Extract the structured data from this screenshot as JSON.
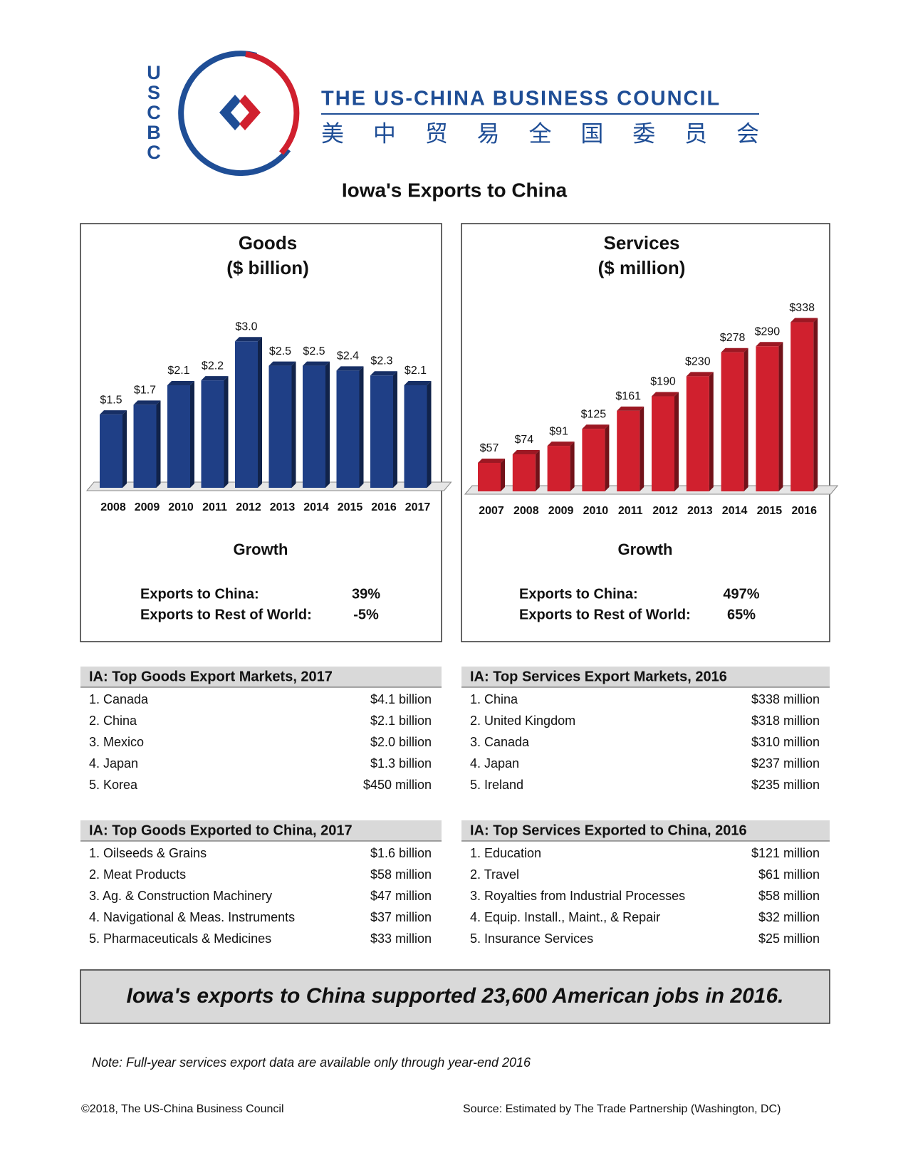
{
  "header": {
    "logo_letters": [
      "U",
      "S",
      "C",
      "B",
      "C"
    ],
    "org_name": "THE US-CHINA BUSINESS COUNCIL",
    "org_name_chinese": "美 中 贸 易 全 国 委 员 会"
  },
  "title": "Iowa's Exports to China",
  "chart_data": [
    {
      "type": "bar",
      "title": "Goods",
      "subtitle": "($ billion)",
      "categories": [
        "2008",
        "2009",
        "2010",
        "2011",
        "2012",
        "2013",
        "2014",
        "2015",
        "2016",
        "2017"
      ],
      "values": [
        1.5,
        1.7,
        2.1,
        2.2,
        3.0,
        2.5,
        2.5,
        2.4,
        2.3,
        2.1
      ],
      "value_labels": [
        "$1.5",
        "$1.7",
        "$2.1",
        "$2.2",
        "$3.0",
        "$2.5",
        "$2.5",
        "$2.4",
        "$2.3",
        "$2.1"
      ],
      "color": "#1f3f86",
      "ylim": [
        0,
        3.5
      ]
    },
    {
      "type": "bar",
      "title": "Services",
      "subtitle": "($ million)",
      "categories": [
        "2007",
        "2008",
        "2009",
        "2010",
        "2011",
        "2012",
        "2013",
        "2014",
        "2015",
        "2016"
      ],
      "values": [
        57,
        74,
        91,
        125,
        161,
        190,
        230,
        278,
        290,
        338
      ],
      "value_labels": [
        "$57",
        "$74",
        "$91",
        "$125",
        "$161",
        "$190",
        "$230",
        "$278",
        "$290",
        "$338"
      ],
      "color": "#d0202e",
      "ylim": [
        0,
        400
      ]
    }
  ],
  "growth": [
    {
      "title": "Growth",
      "rows": [
        [
          "Exports to China:",
          "39%"
        ],
        [
          "Exports to Rest of World:",
          "-5%"
        ]
      ]
    },
    {
      "title": "Growth",
      "rows": [
        [
          "Exports to China:",
          "497%"
        ],
        [
          "Exports to Rest of World:",
          "65%"
        ]
      ]
    }
  ],
  "tables": [
    {
      "title": "IA: Top Goods Export Markets, 2017",
      "rows": [
        [
          "1. Canada",
          "$4.1 billion"
        ],
        [
          "2. China",
          "$2.1 billion"
        ],
        [
          "3. Mexico",
          "$2.0 billion"
        ],
        [
          "4. Japan",
          "$1.3 billion"
        ],
        [
          "5. Korea",
          "$450 million"
        ]
      ]
    },
    {
      "title": "IA: Top Services Export Markets, 2016",
      "rows": [
        [
          "1. China",
          "$338 million"
        ],
        [
          "2. United Kingdom",
          "$318 million"
        ],
        [
          "3. Canada",
          "$310 million"
        ],
        [
          "4. Japan",
          "$237 million"
        ],
        [
          "5. Ireland",
          "$235 million"
        ]
      ]
    },
    {
      "title": "IA: Top Goods Exported to China, 2017",
      "rows": [
        [
          "1. Oilseeds & Grains",
          "$1.6 billion"
        ],
        [
          "2. Meat Products",
          "$58 million"
        ],
        [
          "3. Ag. & Construction Machinery",
          "$47 million"
        ],
        [
          "4. Navigational & Meas. Instruments",
          "$37 million"
        ],
        [
          "5. Pharmaceuticals & Medicines",
          "$33 million"
        ]
      ]
    },
    {
      "title": "IA: Top Services Exported to China, 2016",
      "rows": [
        [
          "1. Education",
          "$121 million"
        ],
        [
          "2. Travel",
          "$61 million"
        ],
        [
          "3. Royalties from Industrial Processes",
          "$58 million"
        ],
        [
          "4. Equip. Install., Maint., & Repair",
          "$32 million"
        ],
        [
          "5. Insurance Services",
          "$25 million"
        ]
      ]
    }
  ],
  "banner": "Iowa's exports to China supported 23,600 American jobs in 2016.",
  "note": "Note: Full-year services export data are available only through year-end 2016",
  "footer": {
    "left": "©2018, The US-China Business Council",
    "right": "Source: Estimated by The Trade Partnership (Washington, DC)"
  }
}
